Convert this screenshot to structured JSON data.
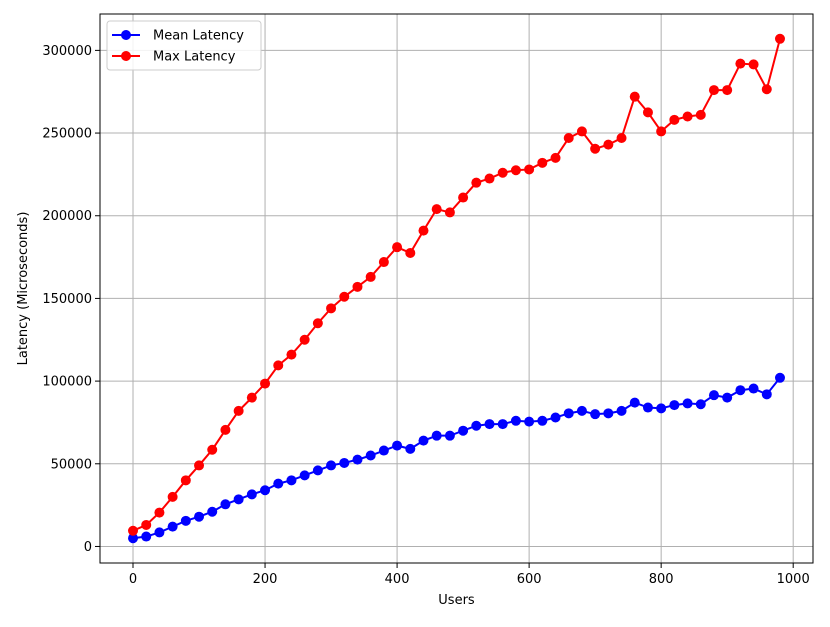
{
  "chart_data": {
    "type": "line",
    "title": "",
    "xlabel": "Users",
    "ylabel": "Latency (Microseconds)",
    "xlim": [
      -50,
      1030
    ],
    "ylim": [
      -10000,
      322000
    ],
    "x_ticks": [
      0,
      200,
      400,
      600,
      800,
      1000
    ],
    "x_tick_labels": [
      "0",
      "200",
      "400",
      "600",
      "800",
      "1000"
    ],
    "y_ticks": [
      0,
      50000,
      100000,
      150000,
      200000,
      250000,
      300000
    ],
    "y_tick_labels": [
      "0",
      "50000",
      "100000",
      "150000",
      "200000",
      "250000",
      "300000"
    ],
    "grid": true,
    "legend_position": "top-left",
    "x": [
      0,
      20,
      40,
      60,
      80,
      100,
      120,
      140,
      160,
      180,
      200,
      220,
      240,
      260,
      280,
      300,
      320,
      340,
      360,
      380,
      400,
      420,
      440,
      460,
      480,
      500,
      520,
      540,
      560,
      580,
      600,
      620,
      640,
      660,
      680,
      700,
      720,
      740,
      760,
      780,
      800,
      820,
      840,
      860,
      880,
      900,
      920,
      940,
      960,
      980
    ],
    "series": [
      {
        "name": "Mean Latency",
        "color": "#0000ff",
        "values": [
          5000,
          6000,
          8500,
          12000,
          15500,
          18000,
          21000,
          25500,
          28500,
          31500,
          34000,
          38000,
          40000,
          43000,
          46000,
          49000,
          50500,
          52500,
          55000,
          58000,
          61000,
          59000,
          64000,
          67000,
          67000,
          70000,
          73000,
          74000,
          74000,
          76000,
          75500,
          76000,
          78000,
          80500,
          82000,
          80000,
          80500,
          82000,
          87000,
          84000,
          83500,
          85500,
          86500,
          86000,
          91500,
          90000,
          94500,
          95500,
          92000,
          102000
        ]
      },
      {
        "name": "Max Latency",
        "color": "#ff0000",
        "values": [
          9500,
          13000,
          20500,
          30000,
          40000,
          49000,
          58500,
          70500,
          82000,
          90000,
          98500,
          109500,
          116000,
          125000,
          135000,
          144000,
          151000,
          157000,
          163000,
          172000,
          181000,
          177500,
          191000,
          204000,
          202000,
          211000,
          220000,
          222500,
          226000,
          227500,
          228000,
          232000,
          235000,
          247000,
          251000,
          240500,
          243000,
          247000,
          272000,
          262500,
          251000,
          258000,
          260000,
          261000,
          276000,
          276000,
          292000,
          291500,
          276500,
          307000
        ]
      }
    ]
  }
}
